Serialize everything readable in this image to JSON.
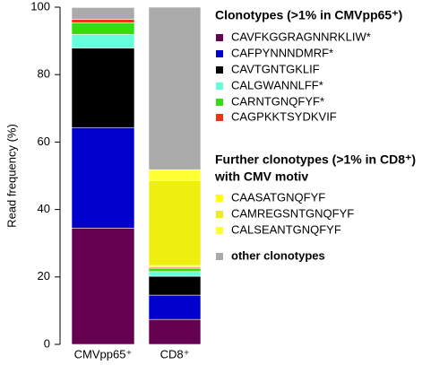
{
  "chart_data": {
    "type": "stacked_bar",
    "y_label": "Read frequency (%)",
    "categories": [
      "CMVpp65⁺",
      "CD8⁺"
    ],
    "ylim": [
      0,
      100
    ],
    "yticks": [
      0,
      20,
      40,
      60,
      80,
      100
    ],
    "legend_headers": [
      "Clonotypes (>1% in CMVpp65⁺)",
      "Further clonotypes (>1% in CD8⁺)",
      "with CMV motiv"
    ],
    "series": [
      {
        "name": "CAVFKGGRAGNNRKLIW*",
        "color": "#660050",
        "values": [
          34.5,
          7.4
        ]
      },
      {
        "name": "CAFPYNNNDMRF*",
        "color": "#0000cc",
        "values": [
          29.8,
          7.2
        ]
      },
      {
        "name": "CAVTGNTGKLIF",
        "color": "#000000",
        "values": [
          23.6,
          5.6
        ]
      },
      {
        "name": "CALGWANNLFF*",
        "color": "#66ffdd",
        "values": [
          4,
          1.4
        ]
      },
      {
        "name": "CARNTGNQFYF*",
        "color": "#33dd11",
        "values": [
          3.5,
          1
        ]
      },
      {
        "name": "CAGPKKTSYDKVIF",
        "color": "#ee3311",
        "values": [
          1,
          0.3
        ]
      },
      {
        "name": "CAASATGNQFYF",
        "color": "#ffff00",
        "values": [
          0,
          0.5
        ]
      },
      {
        "name": "CAMREGSNTGNQFYF",
        "color": "#eeee11",
        "values": [
          0,
          25.2
        ]
      },
      {
        "name": "CALSEANTGNQFYF",
        "color": "#ffff33",
        "values": [
          0,
          3.2
        ]
      },
      {
        "name": "other clonotypes",
        "color": "#aaaaaa",
        "values": [
          3.5,
          48.2
        ]
      }
    ]
  }
}
